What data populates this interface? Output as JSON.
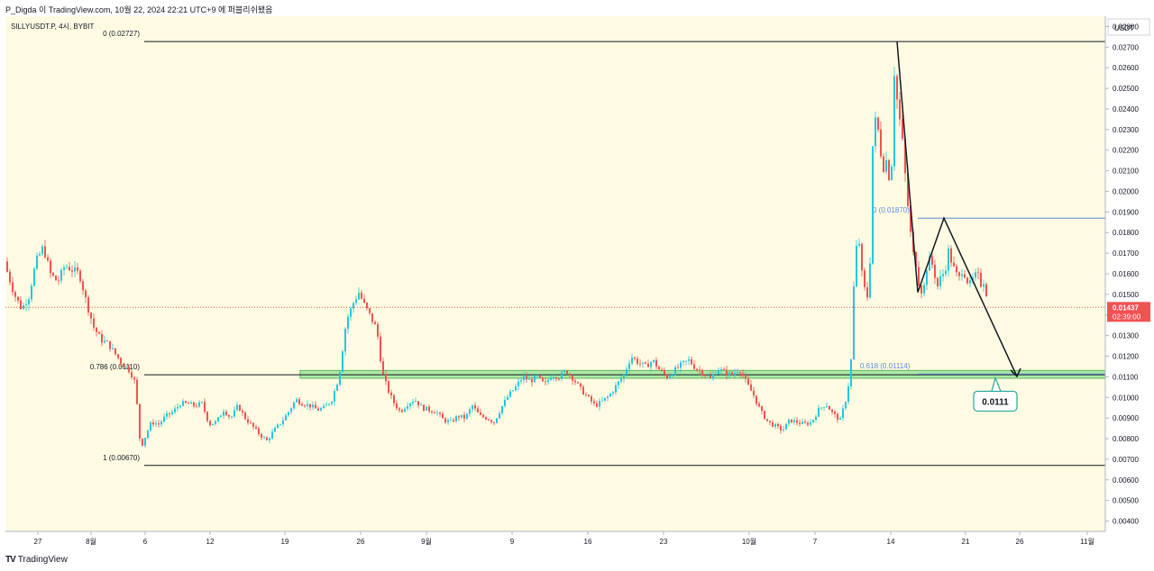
{
  "header": {
    "publish_line": "P_Digda 이 TradingView.com, 10월 22, 2024 22:21 UTC+9 에 퍼블리쉬됐음"
  },
  "symbol_line": "SILLYUSDT.P, 4시, BYBIT",
  "footer": {
    "brand": "TradingView",
    "logo_mark": "TV"
  },
  "colors": {
    "background": "#fffbe3",
    "up": "#26c6da",
    "down": "#ef5350",
    "fib_line": "#131722",
    "fib_blue": "#5b8ad6",
    "zone_fill": "#a5e8a0",
    "zone_border": "#4caf50",
    "price_tag": "#ef5350",
    "callout_border": "#26a69a"
  },
  "chart_data": {
    "type": "candlestick",
    "price_axis_unit": "USDT",
    "ylim": [
      0.0035,
      0.0285
    ],
    "y_ticks": [
      "0.02800",
      "0.02700",
      "0.02600",
      "0.02500",
      "0.02400",
      "0.02300",
      "0.02200",
      "0.02100",
      "0.02000",
      "0.01900",
      "0.01800",
      "0.01700",
      "0.01600",
      "0.01500",
      "0.01400",
      "0.01300",
      "0.01200",
      "0.01100",
      "0.01000",
      "0.00900",
      "0.00800",
      "0.00700",
      "0.00600",
      "0.00500",
      "0.00400"
    ],
    "x_ticks": [
      "27",
      "8월",
      "6",
      "12",
      "19",
      "26",
      "9월",
      "9",
      "16",
      "23",
      "10월",
      "7",
      "14",
      "21",
      "26",
      "11월"
    ],
    "last_price": "0.01437",
    "countdown": "02:39:00",
    "fib_levels": [
      {
        "label": "0 (0.02727)",
        "value": 0.02727
      },
      {
        "label": "0.786 (0.01110)",
        "value": 0.0111
      },
      {
        "label": "1 (0.00670)",
        "value": 0.0067
      }
    ],
    "fib_retracement_2": [
      {
        "label": "0 (0.01870)",
        "value": 0.0187
      },
      {
        "label": "0.618 (0.01114)",
        "value": 0.01114
      }
    ],
    "target_callout": "0.0111",
    "price_path": [
      [
        0,
        0.0166
      ],
      [
        8,
        0.0161
      ],
      [
        16,
        0.015
      ],
      [
        24,
        0.0143
      ],
      [
        32,
        0.0149
      ],
      [
        40,
        0.0166
      ],
      [
        48,
        0.0173
      ],
      [
        56,
        0.016
      ],
      [
        64,
        0.0156
      ],
      [
        72,
        0.0164
      ],
      [
        80,
        0.0162
      ],
      [
        88,
        0.016
      ],
      [
        96,
        0.0146
      ],
      [
        104,
        0.0134
      ],
      [
        112,
        0.0128
      ],
      [
        120,
        0.0126
      ],
      [
        128,
        0.0121
      ],
      [
        136,
        0.0116
      ],
      [
        144,
        0.0113
      ],
      [
        150,
        0.0107
      ],
      [
        156,
        0.0075
      ],
      [
        162,
        0.0082
      ],
      [
        168,
        0.0088
      ],
      [
        176,
        0.0087
      ],
      [
        184,
        0.0091
      ],
      [
        192,
        0.0093
      ],
      [
        200,
        0.0097
      ],
      [
        208,
        0.0097
      ],
      [
        216,
        0.0096
      ],
      [
        224,
        0.0097
      ],
      [
        232,
        0.0087
      ],
      [
        240,
        0.0088
      ],
      [
        248,
        0.0094
      ],
      [
        256,
        0.009
      ],
      [
        264,
        0.0096
      ],
      [
        272,
        0.009
      ],
      [
        280,
        0.0086
      ],
      [
        288,
        0.0082
      ],
      [
        296,
        0.0079
      ],
      [
        304,
        0.0084
      ],
      [
        312,
        0.0088
      ],
      [
        320,
        0.0093
      ],
      [
        328,
        0.0099
      ],
      [
        336,
        0.0097
      ],
      [
        344,
        0.0096
      ],
      [
        352,
        0.0094
      ],
      [
        360,
        0.0095
      ],
      [
        368,
        0.0099
      ],
      [
        376,
        0.011
      ],
      [
        384,
        0.0137
      ],
      [
        392,
        0.0146
      ],
      [
        398,
        0.0151
      ],
      [
        404,
        0.0145
      ],
      [
        410,
        0.014
      ],
      [
        418,
        0.0133
      ],
      [
        424,
        0.0112
      ],
      [
        430,
        0.0104
      ],
      [
        436,
        0.0098
      ],
      [
        444,
        0.0093
      ],
      [
        452,
        0.0097
      ],
      [
        460,
        0.0099
      ],
      [
        468,
        0.0095
      ],
      [
        476,
        0.0094
      ],
      [
        484,
        0.0093
      ],
      [
        492,
        0.0089
      ],
      [
        500,
        0.0088
      ],
      [
        508,
        0.0091
      ],
      [
        516,
        0.009
      ],
      [
        524,
        0.0096
      ],
      [
        532,
        0.0091
      ],
      [
        540,
        0.009
      ],
      [
        548,
        0.0088
      ],
      [
        556,
        0.0095
      ],
      [
        564,
        0.0101
      ],
      [
        572,
        0.0105
      ],
      [
        580,
        0.011
      ],
      [
        588,
        0.0108
      ],
      [
        596,
        0.011
      ],
      [
        604,
        0.0106
      ],
      [
        612,
        0.0111
      ],
      [
        620,
        0.011
      ],
      [
        628,
        0.0113
      ],
      [
        636,
        0.0109
      ],
      [
        644,
        0.0104
      ],
      [
        652,
        0.01
      ],
      [
        660,
        0.0096
      ],
      [
        668,
        0.0098
      ],
      [
        676,
        0.0101
      ],
      [
        684,
        0.0106
      ],
      [
        692,
        0.0111
      ],
      [
        700,
        0.012
      ],
      [
        708,
        0.0117
      ],
      [
        716,
        0.0115
      ],
      [
        724,
        0.0118
      ],
      [
        732,
        0.0113
      ],
      [
        740,
        0.011
      ],
      [
        748,
        0.0113
      ],
      [
        756,
        0.0116
      ],
      [
        764,
        0.0118
      ],
      [
        772,
        0.0114
      ],
      [
        780,
        0.0112
      ],
      [
        788,
        0.0109
      ],
      [
        796,
        0.0114
      ],
      [
        804,
        0.0112
      ],
      [
        812,
        0.0111
      ],
      [
        820,
        0.0114
      ],
      [
        828,
        0.0107
      ],
      [
        836,
        0.0101
      ],
      [
        844,
        0.0093
      ],
      [
        852,
        0.0088
      ],
      [
        860,
        0.0086
      ],
      [
        868,
        0.0084
      ],
      [
        876,
        0.0089
      ],
      [
        884,
        0.0088
      ],
      [
        892,
        0.0087
      ],
      [
        900,
        0.0088
      ],
      [
        908,
        0.0094
      ],
      [
        916,
        0.0097
      ],
      [
        924,
        0.0092
      ],
      [
        932,
        0.0089
      ],
      [
        940,
        0.0102
      ],
      [
        944,
        0.0118
      ],
      [
        948,
        0.0165
      ],
      [
        952,
        0.018
      ],
      [
        956,
        0.016
      ],
      [
        960,
        0.015
      ],
      [
        964,
        0.0148
      ],
      [
        968,
        0.0222
      ],
      [
        972,
        0.0238
      ],
      [
        976,
        0.0221
      ],
      [
        980,
        0.0212
      ],
      [
        984,
        0.0216
      ],
      [
        988,
        0.0199
      ],
      [
        992,
        0.0258
      ],
      [
        996,
        0.024
      ],
      [
        1000,
        0.0229
      ],
      [
        1004,
        0.0208
      ],
      [
        1008,
        0.0188
      ],
      [
        1012,
        0.0171
      ],
      [
        1016,
        0.0165
      ],
      [
        1020,
        0.0153
      ],
      [
        1024,
        0.0151
      ],
      [
        1028,
        0.0163
      ],
      [
        1032,
        0.0168
      ],
      [
        1036,
        0.0161
      ],
      [
        1040,
        0.0154
      ],
      [
        1044,
        0.0159
      ],
      [
        1048,
        0.0161
      ],
      [
        1052,
        0.0171
      ],
      [
        1056,
        0.0165
      ],
      [
        1060,
        0.016
      ],
      [
        1064,
        0.0158
      ],
      [
        1068,
        0.0163
      ],
      [
        1072,
        0.0157
      ],
      [
        1076,
        0.0155
      ],
      [
        1080,
        0.0158
      ],
      [
        1084,
        0.016
      ],
      [
        1088,
        0.0155
      ],
      [
        1092,
        0.0157
      ],
      [
        1096,
        0.0144
      ]
    ]
  }
}
